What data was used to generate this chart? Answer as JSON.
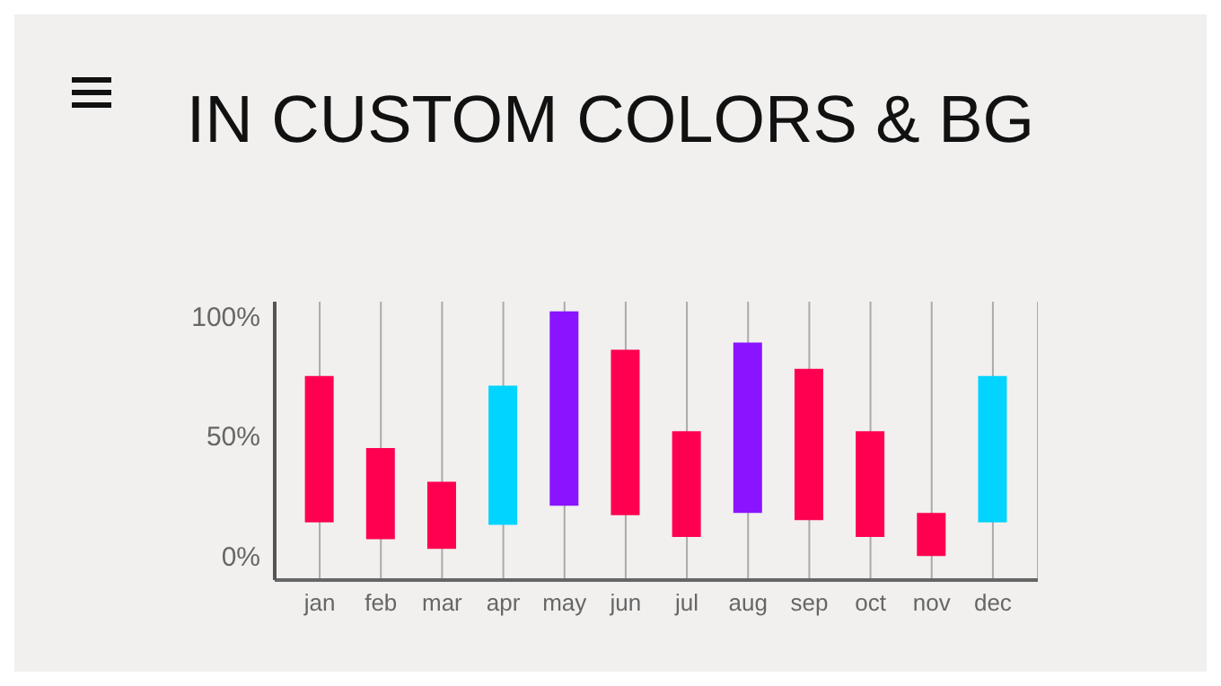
{
  "chart_data": {
    "type": "bar",
    "title": "IN CUSTOM COLORS & BG",
    "categories": [
      "jan",
      "feb",
      "mar",
      "apr",
      "may",
      "jun",
      "jul",
      "aug",
      "sep",
      "oct",
      "nov",
      "dec"
    ],
    "base": [
      14,
      7,
      3,
      13,
      21,
      17,
      8,
      18,
      15,
      8,
      0,
      14
    ],
    "values": [
      61,
      38,
      28,
      58,
      81,
      69,
      44,
      71,
      63,
      44,
      18,
      61
    ],
    "colors": [
      "#ff0050",
      "#ff0050",
      "#ff0050",
      "#00d4ff",
      "#8a14ff",
      "#ff0050",
      "#ff0050",
      "#8a14ff",
      "#ff0050",
      "#ff0050",
      "#ff0050",
      "#00d4ff"
    ],
    "ylim": [
      -10,
      106
    ],
    "yticks": [
      {
        "value": 0,
        "label": "0%"
      },
      {
        "value": 50,
        "label": "50%"
      },
      {
        "value": 100,
        "label": "100%"
      }
    ],
    "grid": "x"
  }
}
